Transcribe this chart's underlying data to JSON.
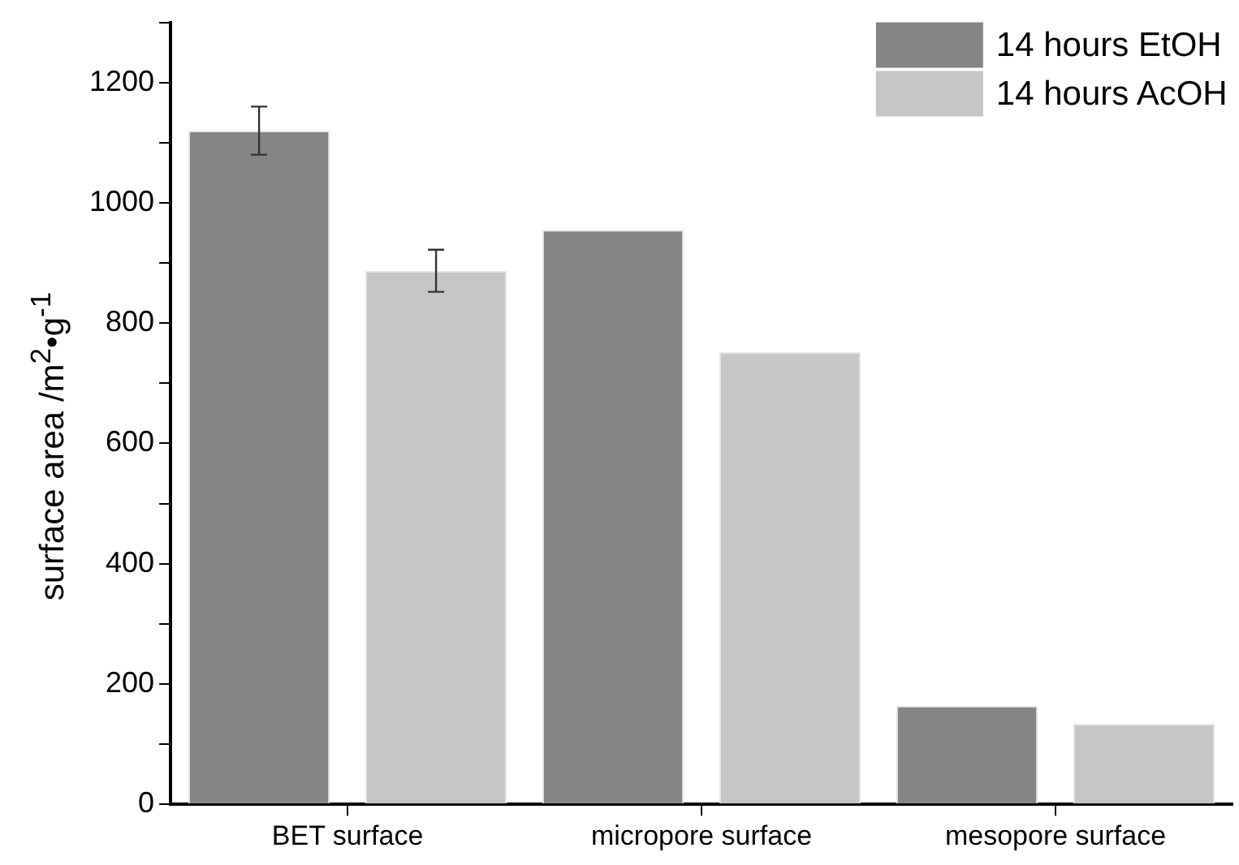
{
  "chart_data": {
    "type": "bar",
    "ylabel": "surface area /m$^{2}$•g$^{-1}$",
    "categories": [
      "BET surface",
      "micropore surface",
      "mesopore surface"
    ],
    "series": [
      {
        "name": "14 hours EtOH",
        "color": "#858585",
        "values": [
          1120,
          955,
          164
        ],
        "errors": [
          40,
          null,
          null
        ]
      },
      {
        "name": "14 hours AcOH",
        "color": "#c6c6c6",
        "values": [
          887,
          752,
          134
        ],
        "errors": [
          35,
          null,
          null
        ]
      }
    ],
    "ylim": [
      0,
      1300
    ],
    "yticks": [
      0,
      {
        "value": 100,
        "label": null
      },
      200,
      {
        "value": 300,
        "label": null
      },
      400,
      {
        "value": 500,
        "label": null
      },
      600,
      {
        "value": 700,
        "label": null
      },
      800,
      {
        "value": 900,
        "label": null
      },
      1000,
      {
        "value": 1100,
        "label": null
      },
      1200,
      {
        "value": 1300,
        "label": null
      }
    ],
    "grid": false,
    "legend": "top right"
  }
}
